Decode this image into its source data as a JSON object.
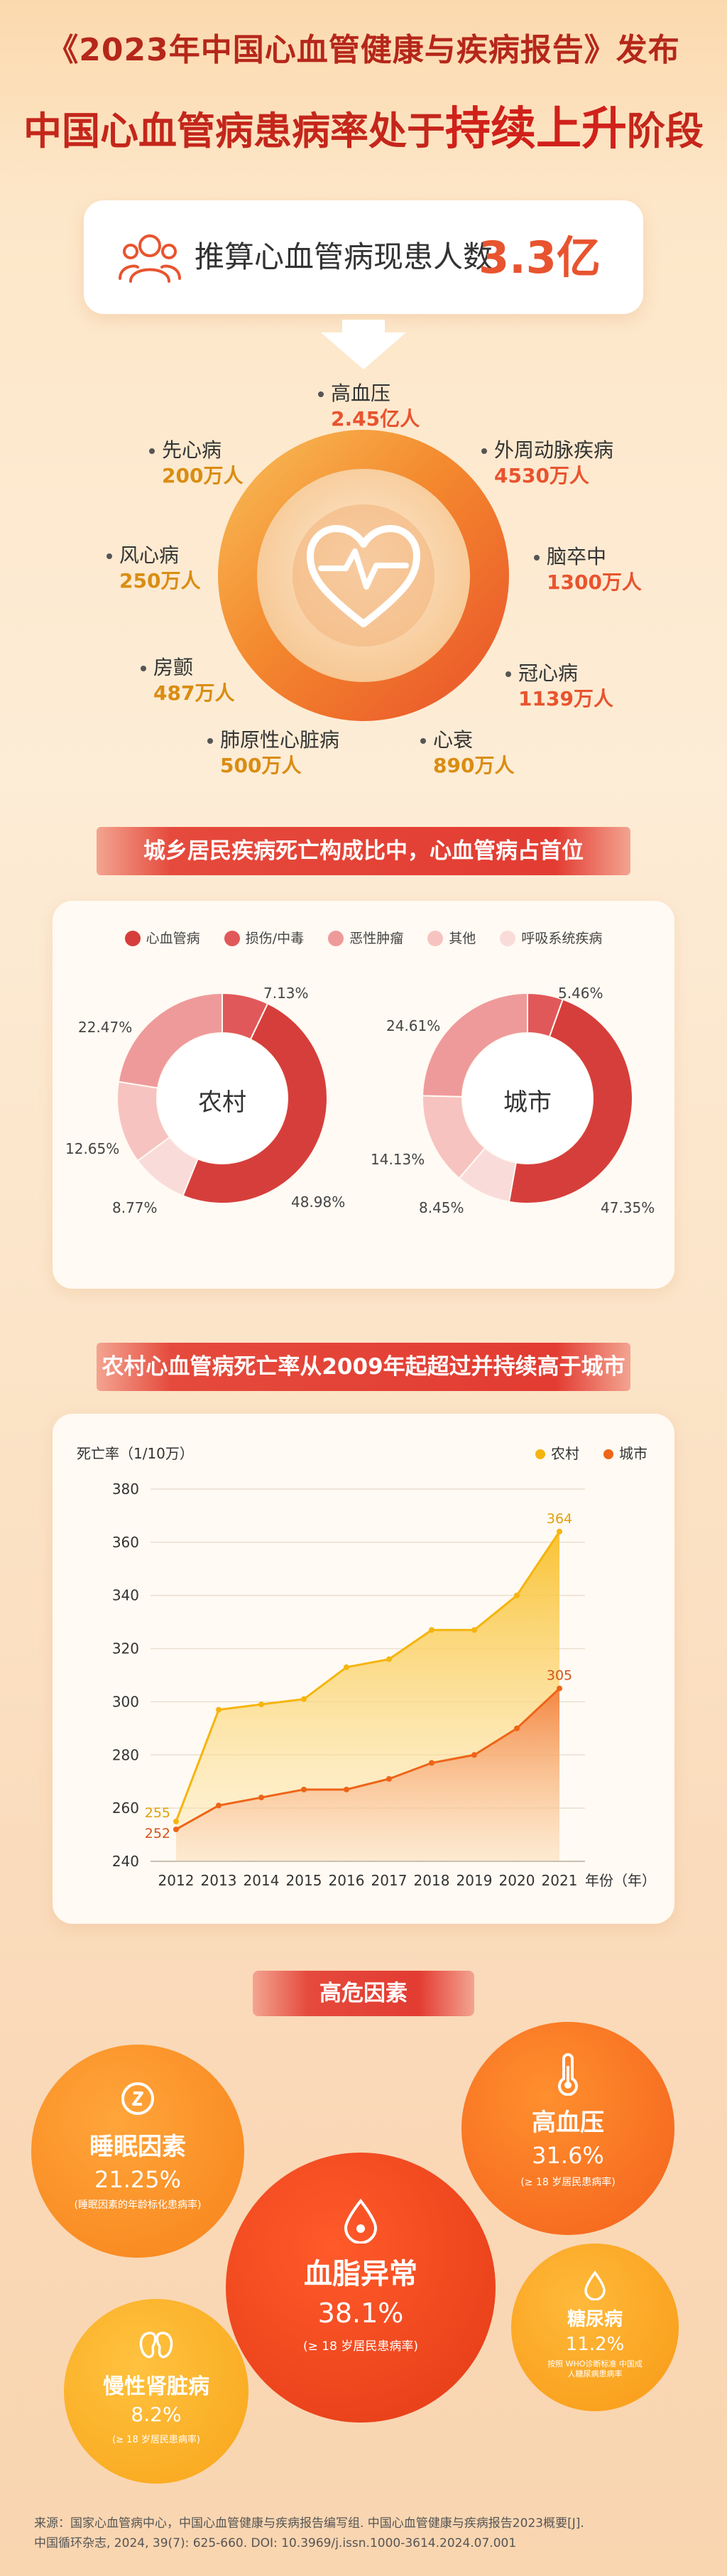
{
  "header": {
    "top_title": "《2023年中国心血管健康与疾病报告》发布",
    "sub_title_prefix": "中国心血管病患病率处于",
    "sub_title_highlight": "持续上升",
    "sub_title_suffix": "阶段"
  },
  "patients": {
    "label": "推算心血管病现患人数",
    "value": "3.3亿",
    "icon": "people-icon"
  },
  "diseases": [
    {
      "name": "高血压",
      "value": "2.45亿人"
    },
    {
      "name": "外周动脉疾病",
      "value": "4530万人"
    },
    {
      "name": "脑卒中",
      "value": "1300万人"
    },
    {
      "name": "冠心病",
      "value": "1139万人"
    },
    {
      "name": "心衰",
      "value": "890万人"
    },
    {
      "name": "肺原性心脏病",
      "value": "500万人"
    },
    {
      "name": "房颤",
      "value": "487万人"
    },
    {
      "name": "风心病",
      "value": "250万人"
    },
    {
      "name": "先心病",
      "value": "200万人"
    }
  ],
  "section1_title": "城乡居民疾病死亡构成比中，心血管病占首位",
  "section2_title": "农村心血管病死亡率从2009年起超过并持续高于城市",
  "risk_title": "高危因素",
  "colors": {
    "cvd": "#d63e3b",
    "injury": "#e1585a",
    "tumor": "#ef9a9a",
    "other": "#f6c3c0",
    "resp": "#f9dcda",
    "rural_line": "#f5b50e",
    "urban_line": "#ee6418"
  },
  "chart_data": [
    {
      "type": "pie",
      "variant": "donut",
      "center_label": "农村",
      "legend": [
        "心血管病",
        "损伤/中毒",
        "恶性肿瘤",
        "其他",
        "呼吸系统疾病"
      ],
      "slices": [
        {
          "name": "心血管病",
          "value": 48.98,
          "label": "48.98%"
        },
        {
          "name": "呼吸系统疾病",
          "value": 8.77,
          "label": "8.77%"
        },
        {
          "name": "其他",
          "value": 12.65,
          "label": "12.65%"
        },
        {
          "name": "恶性肿瘤",
          "value": 22.47,
          "label": "22.47%"
        },
        {
          "name": "损伤/中毒",
          "value": 7.13,
          "label": "7.13%"
        }
      ]
    },
    {
      "type": "pie",
      "variant": "donut",
      "center_label": "城市",
      "slices": [
        {
          "name": "心血管病",
          "value": 47.35,
          "label": "47.35%"
        },
        {
          "name": "呼吸系统疾病",
          "value": 8.45,
          "label": "8.45%"
        },
        {
          "name": "其他",
          "value": 14.13,
          "label": "14.13%"
        },
        {
          "name": "恶性肿瘤",
          "value": 24.61,
          "label": "24.61%"
        },
        {
          "name": "损伤/中毒",
          "value": 5.46,
          "label": "5.46%"
        }
      ]
    },
    {
      "type": "area",
      "ylabel": "死亡率（1/10万）",
      "xlabel": "年份（年）",
      "x": [
        2012,
        2013,
        2014,
        2015,
        2016,
        2017,
        2018,
        2019,
        2020,
        2021
      ],
      "ylim": [
        240,
        380
      ],
      "yticks": [
        240,
        260,
        280,
        300,
        320,
        340,
        360,
        380
      ],
      "series": [
        {
          "name": "农村",
          "values": [
            255,
            297,
            299,
            301,
            313,
            316,
            327,
            327,
            340,
            364
          ],
          "start_label": "255",
          "end_label": "364"
        },
        {
          "name": "城市",
          "values": [
            252,
            261,
            264,
            267,
            267,
            271,
            277,
            280,
            290,
            305
          ],
          "start_label": "252",
          "end_label": "305"
        }
      ]
    }
  ],
  "risks": [
    {
      "name": "睡眠因素",
      "value": "21.25%",
      "note": "(睡眠因素的年龄标化患病率)",
      "icon": "sleep-icon"
    },
    {
      "name": "高血压",
      "value": "31.6%",
      "note": "(≥ 18 岁居民患病率)",
      "icon": "thermometer-icon"
    },
    {
      "name": "血脂异常",
      "value": "38.1%",
      "note": "(≥ 18 岁居民患病率)",
      "icon": "blood-drop-icon"
    },
    {
      "name": "糖尿病",
      "value": "11.2%",
      "note": "按照 WHO诊断标准 中国成人糖尿病患病率",
      "icon": "drop-icon"
    },
    {
      "name": "慢性肾脏病",
      "value": "8.2%",
      "note": "(≥ 18 岁居民患病率)",
      "icon": "kidney-icon"
    }
  ],
  "source": {
    "line1": "来源：国家心血管病中心，中国心血管健康与疾病报告编写组. 中国心血管健康与疾病报告2023概要[J].",
    "line2": "中国循环杂志, 2024, 39(7): 625-660. DOI: 10.3969/j.issn.1000-3614.2024.07.001"
  }
}
